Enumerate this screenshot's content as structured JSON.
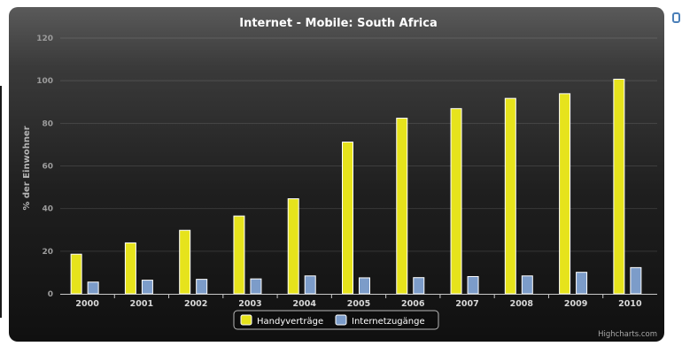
{
  "chart_data": {
    "type": "bar",
    "title": "Internet - Mobile: South Africa",
    "ylabel": "% der Einwohner",
    "xlabel": "",
    "ylim": [
      0,
      120
    ],
    "y_ticks": [
      0,
      20,
      40,
      60,
      80,
      100,
      120
    ],
    "categories": [
      "2000",
      "2001",
      "2002",
      "2003",
      "2004",
      "2005",
      "2006",
      "2007",
      "2008",
      "2009",
      "2010"
    ],
    "series": [
      {
        "name": "Handyverträge",
        "color": "#e6e31c",
        "values": [
          18.6,
          23.9,
          29.8,
          36.5,
          44.6,
          71.2,
          82.4,
          86.9,
          91.7,
          93.9,
          100.7
        ]
      },
      {
        "name": "Internetzugänge",
        "color": "#7c9cc9",
        "values": [
          5.5,
          6.4,
          6.8,
          7.0,
          8.4,
          7.5,
          7.6,
          8.1,
          8.4,
          10.1,
          12.3
        ]
      }
    ],
    "grid": true,
    "legend_position": "bottom-center",
    "credits": "Highcharts.com"
  }
}
